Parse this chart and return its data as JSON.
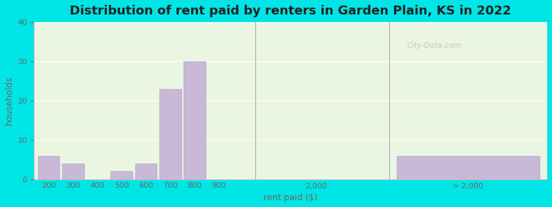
{
  "title": "Distribution of rent paid by renters in Garden Plain, KS in 2022",
  "xlabel": "rent paid ($)",
  "ylabel": "households",
  "categories": [
    "200",
    "300",
    "400",
    "500",
    "600",
    "700",
    "800",
    "900",
    "2,000",
    "> 2,000"
  ],
  "values": [
    6,
    4,
    0,
    2,
    4,
    23,
    30,
    0,
    0,
    6
  ],
  "bar_color": "#c9b8d8",
  "bar_color_edge": "#b0a0c8",
  "ylim": [
    0,
    40
  ],
  "yticks": [
    0,
    10,
    20,
    30,
    40
  ],
  "bg_outer": "#00e5e5",
  "bg_inner": "#eaf5e2",
  "title_fontsize": 13,
  "axis_label_fontsize": 9,
  "tick_fontsize": 8,
  "watermark_text": "City-Data.com",
  "x_positions": [
    0,
    1,
    2,
    3,
    4,
    5,
    6,
    7,
    11,
    17
  ],
  "bar_width": 0.9,
  "xlim": [
    -0.6,
    20.5
  ],
  "sep1_x": 8.5,
  "sep2_x": 14.0,
  "tick_positions": [
    0,
    1,
    2,
    3,
    4,
    5,
    6,
    7,
    11,
    17
  ]
}
